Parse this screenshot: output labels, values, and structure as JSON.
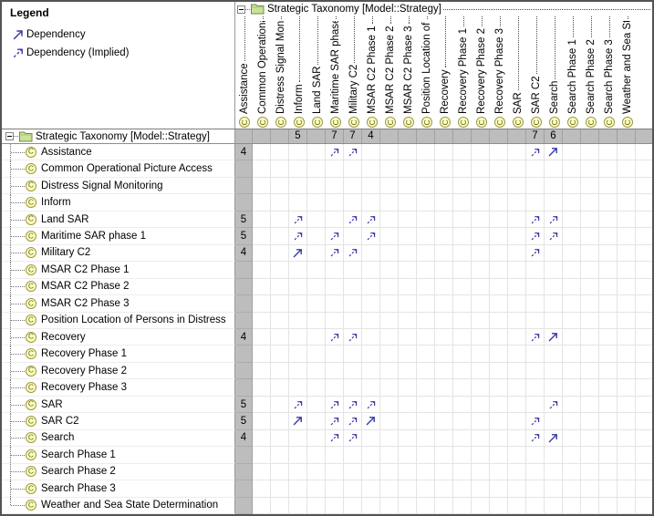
{
  "legend": {
    "title": "Legend",
    "items": [
      {
        "label": "Dependency",
        "style": "solid"
      },
      {
        "label": "Dependency (Implied)",
        "style": "implied"
      }
    ]
  },
  "root": {
    "label": "Strategic Taxonomy [Model::Strategy]"
  },
  "icons": {
    "capability_letter": "C"
  },
  "colors": {
    "arrow": "#3939A8",
    "capability_fill": "#FFFFC2",
    "capability_border": "#99993D",
    "totals_bg": "#BDBDBD"
  },
  "matrix": {
    "elements": [
      "Assistance",
      "Common Operational Picture Access",
      "Distress Signal Monitoring",
      "Inform",
      "Land SAR",
      "Maritime SAR phase 1",
      "Military C2",
      "MSAR C2 Phase 1",
      "MSAR C2 Phase 2",
      "MSAR C2 Phase 3",
      "Position Location of Persons in Distress",
      "Recovery",
      "Recovery Phase 1",
      "Recovery Phase 2",
      "Recovery Phase 3",
      "SAR",
      "SAR C2",
      "Search",
      "Search Phase 1",
      "Search Phase 2",
      "Search Phase 3",
      "Weather and Sea State Determination"
    ],
    "column_totals": {
      "Distress Signal Monitoring": 5,
      "Land SAR": 7,
      "Maritime SAR phase 1": 7,
      "Military C2": 4,
      "SAR": 7,
      "SAR C2": 6
    },
    "row_totals": {
      "Assistance": 4,
      "Land SAR": 5,
      "Maritime SAR phase 1": 5,
      "Military C2": 4,
      "Recovery": 4,
      "SAR": 5,
      "SAR C2": 5,
      "Search": 4
    },
    "dependencies": {
      "Assistance": {
        "Land SAR": "implied",
        "Maritime SAR phase 1": "implied",
        "SAR": "implied",
        "SAR C2": "solid"
      },
      "Land SAR": {
        "Distress Signal Monitoring": "implied",
        "Maritime SAR phase 1": "implied",
        "Military C2": "implied",
        "SAR": "implied",
        "SAR C2": "implied"
      },
      "Maritime SAR phase 1": {
        "Distress Signal Monitoring": "implied",
        "Land SAR": "implied",
        "Military C2": "implied",
        "SAR": "implied",
        "SAR C2": "implied"
      },
      "Military C2": {
        "Distress Signal Monitoring": "solid",
        "Land SAR": "implied",
        "Maritime SAR phase 1": "implied",
        "SAR": "implied"
      },
      "Recovery": {
        "Land SAR": "implied",
        "Maritime SAR phase 1": "implied",
        "SAR": "implied",
        "SAR C2": "solid"
      },
      "SAR": {
        "Distress Signal Monitoring": "implied",
        "Land SAR": "implied",
        "Maritime SAR phase 1": "implied",
        "Military C2": "implied",
        "SAR C2": "implied"
      },
      "SAR C2": {
        "Distress Signal Monitoring": "solid",
        "Land SAR": "implied",
        "Maritime SAR phase 1": "implied",
        "Military C2": "solid",
        "SAR": "implied"
      },
      "Search": {
        "Land SAR": "implied",
        "Maritime SAR phase 1": "implied",
        "SAR": "implied",
        "SAR C2": "solid"
      }
    }
  }
}
